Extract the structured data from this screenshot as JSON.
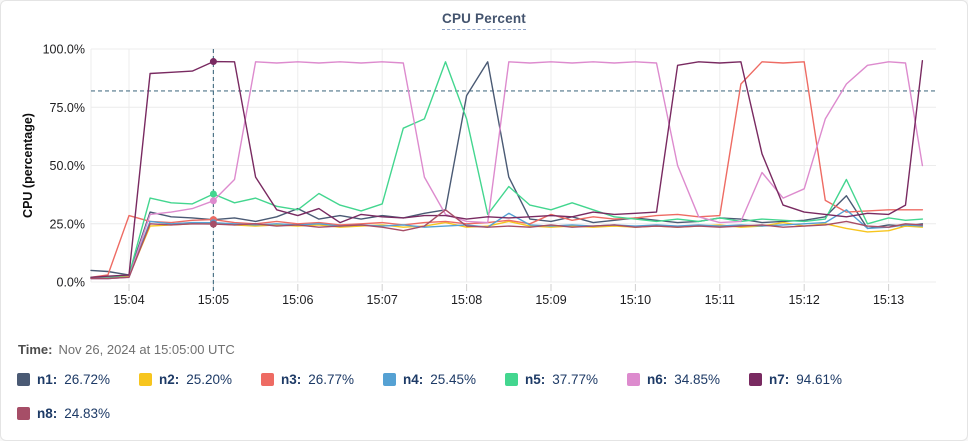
{
  "title": {
    "text": "CPU Percent"
  },
  "colors": {
    "grid": "#ececec",
    "tick_mark": "#cfcfcf",
    "threshold": "#4f7589",
    "crosshair": "#4f7589",
    "axis_text": "#1d1d1f",
    "title_text": "#44546e",
    "legend_text": "#1d3a66"
  },
  "chart_data": {
    "type": "line",
    "title": "CPU Percent",
    "xlabel": "",
    "ylabel": "CPU (percentage)",
    "ylim": [
      0,
      100
    ],
    "grid": true,
    "legend_position": "bottom",
    "x_tick_labels": [
      "15:04",
      "15:05",
      "15:06",
      "15:07",
      "15:08",
      "15:09",
      "15:10",
      "15:11",
      "15:12",
      "15:13"
    ],
    "x_tick_minutes": [
      4,
      5,
      6,
      7,
      8,
      9,
      10,
      11,
      12,
      13
    ],
    "y_tick_labels": [
      "0.0%",
      "25.0%",
      "50.0%",
      "75.0%",
      "100.0%"
    ],
    "y_tick_values": [
      0,
      25,
      50,
      75,
      100
    ],
    "threshold_percent": 82,
    "crosshair_minute": 5,
    "x_minutes": [
      3.55,
      3.75,
      4,
      4.25,
      4.5,
      4.75,
      5,
      5.25,
      5.5,
      5.75,
      6,
      6.25,
      6.5,
      6.75,
      7,
      7.25,
      7.5,
      7.75,
      8,
      8.25,
      8.5,
      8.75,
      9,
      9.25,
      9.5,
      9.75,
      10,
      10.25,
      10.5,
      10.75,
      11,
      11.25,
      11.5,
      11.75,
      12,
      12.25,
      12.5,
      12.75,
      13,
      13.2,
      13.4
    ],
    "series": [
      {
        "name": "n1",
        "color": "#4a5a74",
        "values": [
          5,
          4.5,
          3,
          30,
          28,
          27.5,
          26.72,
          27.5,
          26,
          28,
          31.5,
          27,
          28.5,
          27,
          28.5,
          27.5,
          29.5,
          31,
          80,
          94.5,
          45,
          27,
          26,
          28,
          25.5,
          26.5,
          27.5,
          26.5,
          25.5,
          26,
          27.5,
          27,
          25.5,
          26,
          26.5,
          28,
          37,
          23,
          24.5,
          24,
          25
        ]
      },
      {
        "name": "n2",
        "color": "#f7c51e",
        "values": [
          2,
          2,
          2.5,
          24,
          24.5,
          25,
          25.2,
          24.5,
          24,
          24.5,
          24,
          24.5,
          23.5,
          24,
          24.5,
          23.5,
          24,
          25.5,
          23.5,
          24,
          26,
          24,
          23.5,
          24,
          23.5,
          24,
          23.5,
          24,
          23.5,
          24,
          24.5,
          23.5,
          24,
          25.5,
          24,
          25,
          23,
          21.5,
          22,
          24,
          23.5
        ]
      },
      {
        "name": "n3",
        "color": "#ee6b63",
        "values": [
          2,
          3,
          28.5,
          26,
          25.5,
          26.5,
          26.77,
          25.5,
          25,
          26,
          25,
          25.5,
          24.5,
          25,
          25.5,
          24.5,
          25.5,
          26,
          25,
          25.5,
          26.5,
          25,
          29,
          26.5,
          28,
          27,
          27.5,
          28.5,
          29,
          28,
          28.5,
          85,
          94.5,
          94,
          94.5,
          35,
          30,
          30.5,
          31,
          31,
          31
        ]
      },
      {
        "name": "n4",
        "color": "#55a1d3",
        "values": [
          1.5,
          1.5,
          2,
          26,
          25,
          25.5,
          25.45,
          25,
          24.5,
          25,
          24.5,
          25,
          24,
          24.5,
          24,
          24.5,
          23.5,
          24,
          24.5,
          23.5,
          29.5,
          24.5,
          24,
          24.5,
          24,
          24.5,
          24,
          24.5,
          24,
          24.5,
          24,
          24.5,
          24,
          24.5,
          25,
          25.5,
          31,
          23,
          23.5,
          24.5,
          24
        ]
      },
      {
        "name": "n5",
        "color": "#43d68f",
        "values": [
          2,
          2,
          3,
          36,
          34,
          33.5,
          37.77,
          34,
          36,
          32.5,
          31,
          38,
          33,
          30.5,
          33.5,
          66,
          70,
          94.5,
          70,
          29,
          41,
          33,
          31,
          34,
          31,
          28,
          27,
          26,
          27,
          26,
          27.5,
          26,
          27,
          26.5,
          26,
          27,
          44,
          25,
          27.5,
          26.5,
          27
        ]
      },
      {
        "name": "n6",
        "color": "#dd8bce",
        "values": [
          1.5,
          1.5,
          2,
          29,
          30,
          31.5,
          34.85,
          44,
          94.5,
          94,
          94.5,
          94,
          94.5,
          94,
          94.5,
          94,
          45,
          29,
          26,
          25.5,
          94.5,
          94,
          94.5,
          94,
          94.5,
          94,
          94.5,
          94,
          50,
          28,
          25.5,
          26,
          47,
          36,
          40,
          70,
          85,
          93,
          94.5,
          94,
          50
        ]
      },
      {
        "name": "n7",
        "color": "#792a61",
        "values": [
          2,
          2.5,
          3,
          89.5,
          90,
          90.5,
          94.61,
          94.5,
          45,
          31,
          28.5,
          31.5,
          25.5,
          29,
          28,
          27.5,
          28.5,
          28.5,
          27,
          28,
          27.5,
          28,
          28.5,
          28,
          30,
          29,
          29.5,
          30,
          93,
          94.5,
          94,
          94.5,
          55,
          33,
          30,
          29,
          28,
          29.5,
          29,
          33,
          95
        ]
      },
      {
        "name": "n8",
        "color": "#a64e67",
        "values": [
          1.5,
          1.5,
          2,
          25,
          24.5,
          25,
          24.83,
          24.5,
          25,
          24,
          24.5,
          23.5,
          24,
          24.5,
          23.5,
          22,
          24,
          31,
          24,
          23.5,
          24,
          23.5,
          24.5,
          23.5,
          24,
          24.5,
          23.5,
          24,
          23.5,
          24,
          23.5,
          24,
          24.5,
          23.5,
          24,
          24.5,
          26,
          24,
          23.5,
          25,
          24.5
        ]
      }
    ]
  },
  "tooltip": {
    "time_label": "Time:",
    "time_value": "Nov 26, 2024 at 15:05:00 UTC",
    "entries": [
      {
        "label": "n1:",
        "value": "26.72%",
        "color": "#4a5a74"
      },
      {
        "label": "n2:",
        "value": "25.20%",
        "color": "#f7c51e"
      },
      {
        "label": "n3:",
        "value": "26.77%",
        "color": "#ee6b63"
      },
      {
        "label": "n4:",
        "value": "25.45%",
        "color": "#55a1d3"
      },
      {
        "label": "n5:",
        "value": "37.77%",
        "color": "#43d68f"
      },
      {
        "label": "n6:",
        "value": "34.85%",
        "color": "#dd8bce"
      },
      {
        "label": "n7:",
        "value": "94.61%",
        "color": "#792a61"
      },
      {
        "label": "n8:",
        "value": "24.83%",
        "color": "#a64e67"
      }
    ]
  }
}
